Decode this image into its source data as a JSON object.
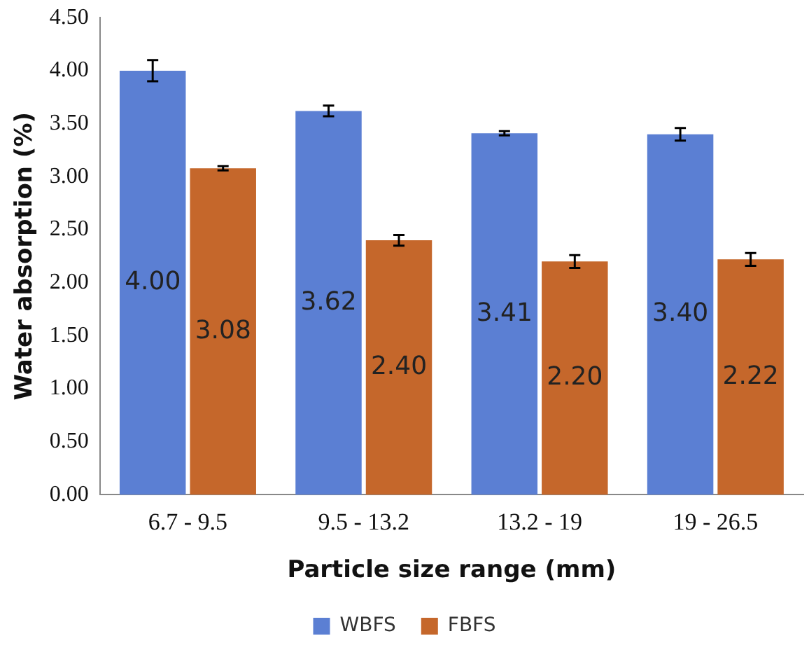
{
  "chart_data": {
    "type": "bar",
    "xlabel": "Particle size range (mm)",
    "ylabel": "Water absorption (%)",
    "categories": [
      "6.7 - 9.5",
      "9.5 - 13.2",
      "13.2 - 19",
      "19 - 26.5"
    ],
    "series": [
      {
        "name": "WBFS",
        "color": "#5b7fd3",
        "values": [
          4.0,
          3.62,
          3.41,
          3.4
        ],
        "errors": [
          0.1,
          0.05,
          0.02,
          0.06
        ],
        "value_labels": [
          "4.00",
          "3.62",
          "3.41",
          "3.40"
        ]
      },
      {
        "name": "FBFS",
        "color": "#c5672b",
        "values": [
          3.08,
          2.4,
          2.2,
          2.22
        ],
        "errors": [
          0.02,
          0.05,
          0.06,
          0.06
        ],
        "value_labels": [
          "3.08",
          "2.40",
          "2.20",
          "2.22"
        ]
      }
    ],
    "ylim": [
      0,
      4.5
    ],
    "yticks": [
      {
        "value": 0,
        "label": "0.00"
      },
      {
        "value": 0.5,
        "label": "0.50"
      },
      {
        "value": 1,
        "label": "1.00"
      },
      {
        "value": 1.5,
        "label": "1.50"
      },
      {
        "value": 2,
        "label": "2.00"
      },
      {
        "value": 2.5,
        "label": "2.50"
      },
      {
        "value": 3,
        "label": "3.00"
      },
      {
        "value": 3.5,
        "label": "3.50"
      },
      {
        "value": 4,
        "label": "4.00"
      },
      {
        "value": 4.5,
        "label": "4.50"
      }
    ],
    "grid": false,
    "legend": "bottom"
  }
}
